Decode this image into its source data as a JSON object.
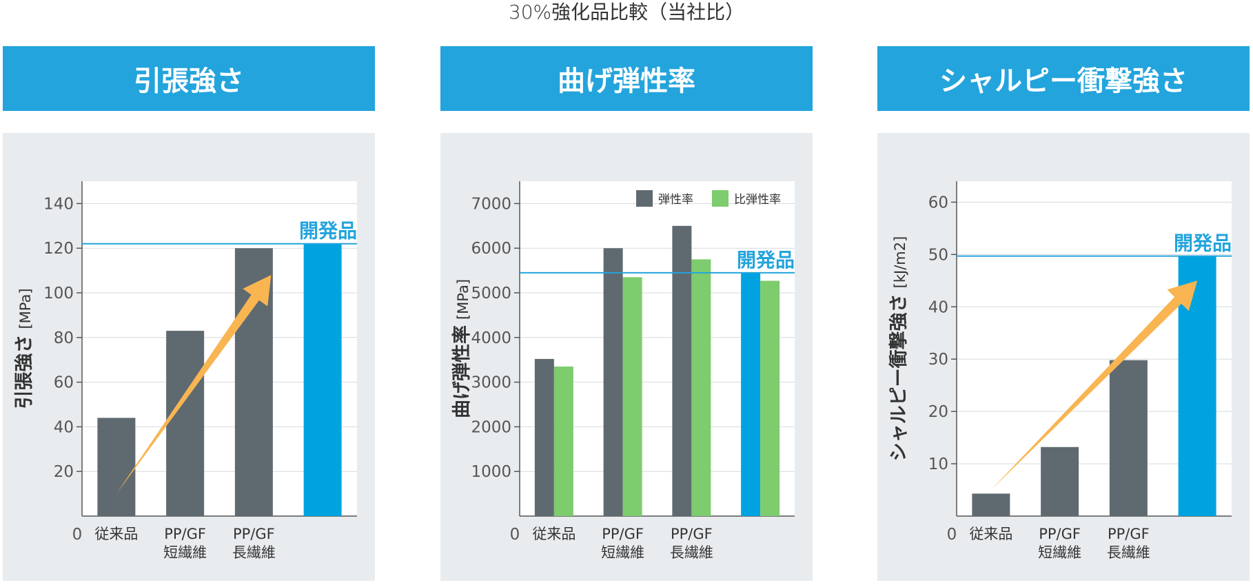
{
  "page_title": "30%強化品比較（当社比）",
  "colors": {
    "header_bg": "#23a4dc",
    "panel_bg": "#e9ecef",
    "dark_bar": "#5f6a70",
    "green_bar": "#7dcc6e",
    "blue_bar": "#00a3e0",
    "arrow": "#f8b552",
    "ref_line": "#23a4dc"
  },
  "chart_data": [
    {
      "type": "bar",
      "title": "引張強さ",
      "ylabel": "引張強さ",
      "yunit": "[MPa]",
      "ylim": [
        0,
        150
      ],
      "yticks": [
        20,
        40,
        60,
        80,
        100,
        120,
        140
      ],
      "origin_label": "0",
      "categories": [
        "従来品",
        "PP/GF 短繊維",
        "PP/GF 長繊維",
        "開発品"
      ],
      "category_lines": [
        [
          "従来品"
        ],
        [
          "PP/GF",
          "短繊維"
        ],
        [
          "PP/GF",
          "長繊維"
        ],
        []
      ],
      "series": [
        {
          "values": [
            44,
            83,
            120,
            122
          ],
          "colors": [
            "#5f6a70",
            "#5f6a70",
            "#5f6a70",
            "#00a3e0"
          ]
        }
      ],
      "reference_line": 122,
      "annotation": "開発品",
      "arrow": {
        "from": [
          0,
          10
        ],
        "to": [
          2,
          108
        ]
      }
    },
    {
      "type": "bar",
      "title": "曲げ弾性率",
      "ylabel": "曲げ弾性率",
      "yunit": "[MPa]",
      "ylim": [
        0,
        7500
      ],
      "yticks": [
        1000,
        2000,
        3000,
        4000,
        5000,
        6000,
        7000
      ],
      "origin_label": "0",
      "categories": [
        "従来品",
        "PP/GF 短繊維",
        "PP/GF 長繊維",
        "開発品"
      ],
      "category_lines": [
        [
          "従来品"
        ],
        [
          "PP/GF",
          "短繊維"
        ],
        [
          "PP/GF",
          "長繊維"
        ],
        []
      ],
      "series": [
        {
          "name": "弾性率",
          "values": [
            3520,
            6000,
            6500,
            5450
          ],
          "colors": [
            "#5f6a70",
            "#5f6a70",
            "#5f6a70",
            "#00a3e0"
          ]
        },
        {
          "name": "比弾性率",
          "values": [
            3350,
            5350,
            5750,
            5270
          ],
          "colors": [
            "#7dcc6e",
            "#7dcc6e",
            "#7dcc6e",
            "#7dcc6e"
          ]
        }
      ],
      "legend": [
        {
          "label": "弾性率",
          "color": "#5f6a70"
        },
        {
          "label": "比弾性率",
          "color": "#7dcc6e"
        }
      ],
      "legend_position": "top-right",
      "reference_line": 5450,
      "annotation": "開発品"
    },
    {
      "type": "bar",
      "title": "シャルピー衝撃強さ",
      "ylabel": "シャルピー衝撃強さ",
      "yunit": "[kJ/m2]",
      "ylim": [
        0,
        64
      ],
      "yticks": [
        10,
        20,
        30,
        40,
        50,
        60
      ],
      "origin_label": "0",
      "categories": [
        "従来品",
        "PP/GF 短繊維",
        "PP/GF 長繊維",
        "開発品"
      ],
      "category_lines": [
        [
          "従来品"
        ],
        [
          "PP/GF",
          "短繊維"
        ],
        [
          "PP/GF",
          "長繊維"
        ],
        []
      ],
      "series": [
        {
          "values": [
            4.3,
            13.2,
            29.8,
            49.7
          ],
          "colors": [
            "#5f6a70",
            "#5f6a70",
            "#5f6a70",
            "#00a3e0"
          ]
        }
      ],
      "reference_line": 49.7,
      "annotation": "開発品",
      "arrow": {
        "from": [
          0,
          5
        ],
        "to": [
          2.75,
          45
        ]
      }
    }
  ]
}
